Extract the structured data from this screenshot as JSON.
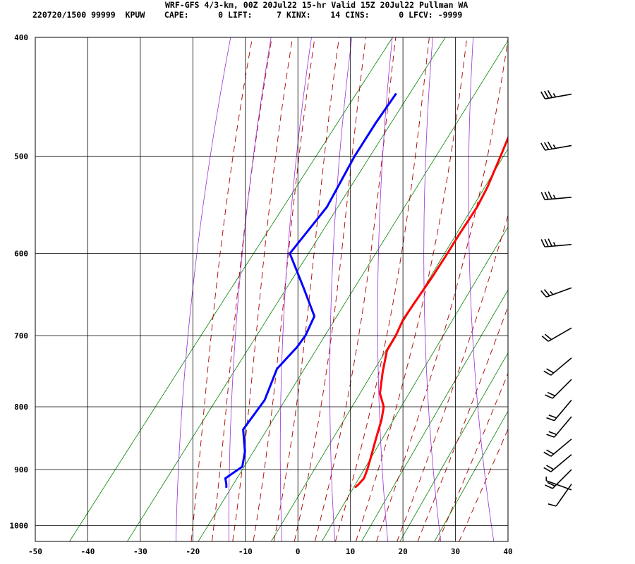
{
  "header": {
    "line1": "WRF-GFS 4/3-km, 00Z 20Jul22 15-hr Valid 15Z 20Jul22 Pullman WA",
    "line2": "220720/1500 99999  KPUW    CAPE:      0 LIFT:     7 KINX:    14 CINS:      0 LFCV: -9999"
  },
  "colors": {
    "temperature": "#ff0000",
    "dewpoint": "#0000ff",
    "dry_adiabat": "#9b30d9",
    "moist_adiabat": "#aa0000",
    "mixing_ratio": "#008000",
    "grid": "#000000"
  },
  "chart_data": {
    "type": "line",
    "title": "",
    "xlabel": "",
    "ylabel": "",
    "x_axis": {
      "ticks": [
        -50,
        -40,
        -30,
        -20,
        -10,
        0,
        10,
        20,
        30,
        40
      ],
      "range": [
        -50,
        40
      ],
      "unit": "C"
    },
    "y_axis": {
      "ticks": [
        400,
        500,
        600,
        700,
        800,
        900,
        1000
      ],
      "range": [
        400,
        1030
      ],
      "scale": "log",
      "unit": "hPa"
    },
    "grid": true,
    "series": [
      {
        "id": "temperature",
        "points": [
          [
            445,
            -16.6
          ],
          [
            470,
            -14.8
          ],
          [
            500,
            -12.8
          ],
          [
            530,
            -11.0
          ],
          [
            550,
            -10.2
          ],
          [
            580,
            -9.8
          ],
          [
            600,
            -9.4
          ],
          [
            630,
            -9.0
          ],
          [
            660,
            -8.8
          ],
          [
            680,
            -8.6
          ],
          [
            700,
            -7.8
          ],
          [
            720,
            -7.4
          ],
          [
            750,
            -5.2
          ],
          [
            780,
            -2.8
          ],
          [
            800,
            -0.2
          ],
          [
            820,
            1.2
          ],
          [
            850,
            2.8
          ],
          [
            880,
            4.4
          ],
          [
            900,
            5.4
          ],
          [
            915,
            6.0
          ],
          [
            925,
            5.8
          ],
          [
            930,
            5.6
          ]
        ]
      },
      {
        "id": "dewpoint",
        "points": [
          [
            445,
            -41.4
          ],
          [
            470,
            -41.2
          ],
          [
            500,
            -40.6
          ],
          [
            550,
            -38.8
          ],
          [
            600,
            -39.4
          ],
          [
            640,
            -32.0
          ],
          [
            675,
            -26.0
          ],
          [
            700,
            -25.0
          ],
          [
            715,
            -25.0
          ],
          [
            745,
            -25.8
          ],
          [
            790,
            -23.8
          ],
          [
            835,
            -23.8
          ],
          [
            870,
            -20.4
          ],
          [
            895,
            -18.8
          ],
          [
            915,
            -20.4
          ],
          [
            925,
            -19.4
          ],
          [
            930,
            -19.0
          ]
        ]
      }
    ],
    "dry_adiabats_theta_K": [
      250,
      260,
      270,
      280,
      290,
      300,
      310,
      320,
      330,
      340,
      350,
      360,
      370,
      380,
      390
    ],
    "moist_adiabats_thetaw_C": [
      -20,
      -16,
      -12,
      -8,
      -4,
      0,
      4,
      8,
      12,
      16,
      20,
      24,
      28,
      32
    ],
    "mixing_ratio_lines_gkg": [
      0.1,
      0.3,
      1,
      3,
      6,
      10,
      16,
      24
    ],
    "wind_barbs": [
      {
        "pressure": 445,
        "dir": 260,
        "speed_kt": 35
      },
      {
        "pressure": 490,
        "dir": 260,
        "speed_kt": 35
      },
      {
        "pressure": 540,
        "dir": 265,
        "speed_kt": 35
      },
      {
        "pressure": 590,
        "dir": 265,
        "speed_kt": 35
      },
      {
        "pressure": 640,
        "dir": 250,
        "speed_kt": 25
      },
      {
        "pressure": 690,
        "dir": 240,
        "speed_kt": 20
      },
      {
        "pressure": 730,
        "dir": 230,
        "speed_kt": 20
      },
      {
        "pressure": 760,
        "dir": 225,
        "speed_kt": 20
      },
      {
        "pressure": 790,
        "dir": 220,
        "speed_kt": 20
      },
      {
        "pressure": 815,
        "dir": 220,
        "speed_kt": 20
      },
      {
        "pressure": 850,
        "dir": 230,
        "speed_kt": 20
      },
      {
        "pressure": 875,
        "dir": 230,
        "speed_kt": 20
      },
      {
        "pressure": 900,
        "dir": 225,
        "speed_kt": 20
      },
      {
        "pressure": 925,
        "dir": 215,
        "speed_kt": 10
      },
      {
        "pressure": 935,
        "dir": 290,
        "speed_kt": 5
      }
    ]
  }
}
